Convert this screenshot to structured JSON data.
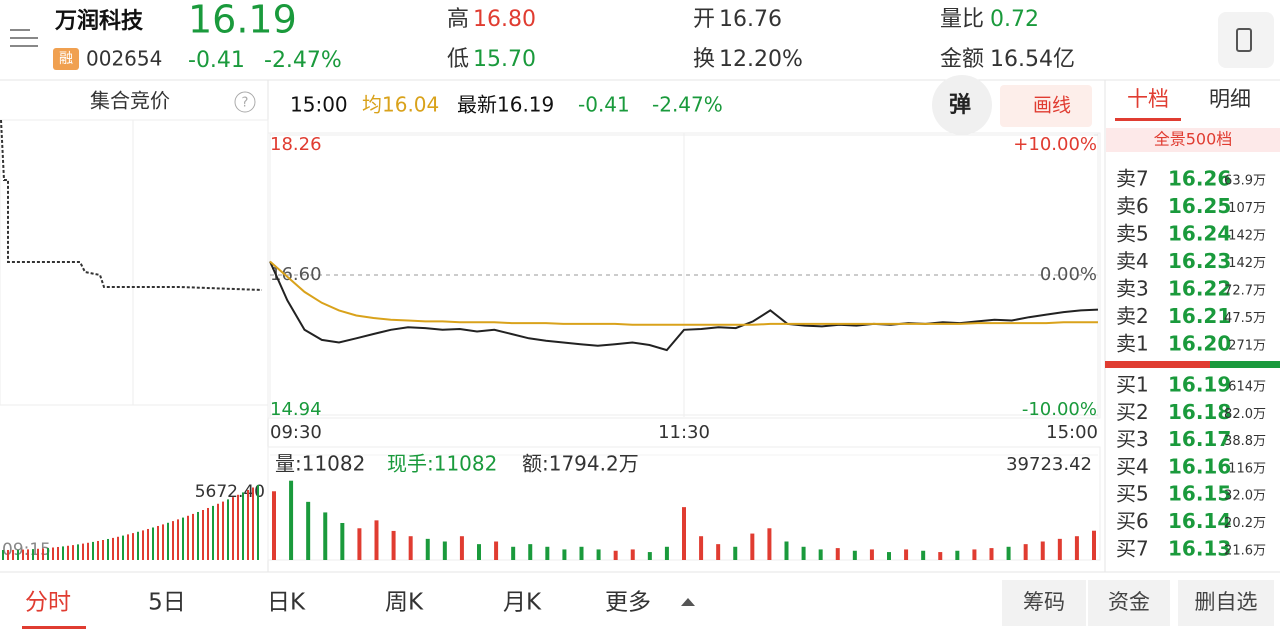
{
  "header": {
    "name": "万润科技",
    "tag": "融",
    "code": "002654",
    "price": "16.19",
    "change": "-0.41",
    "change_pct": "-2.47%",
    "stats": [
      {
        "label": "高",
        "value": "16.80"
      },
      {
        "label": "低",
        "value": "15.70"
      },
      {
        "label": "开",
        "value": "16.76"
      },
      {
        "label": "换",
        "value": "12.20%"
      },
      {
        "label": "量比",
        "value": "0.72"
      },
      {
        "label": "金额",
        "value": "16.54亿"
      }
    ]
  },
  "auction": {
    "title": "集合竞价",
    "help": "?",
    "value_label": "5672.40",
    "time": "09:15"
  },
  "info_bar": {
    "time": "15:00",
    "avg": "均16.04",
    "latest": "最新16.19",
    "change": "-0.41",
    "change_pct": "-2.47%",
    "pop_button": "弹",
    "draw_button": "画线"
  },
  "chart_data": [
    {
      "type": "line",
      "xlim": [
        0,
        240
      ],
      "xticks": [
        {
          "value": 0,
          "label": "09:30"
        },
        {
          "value": 120,
          "label": "11:30"
        },
        {
          "value": 240,
          "label": "15:00"
        }
      ],
      "ylim": [
        14.94,
        18.26
      ],
      "yticks": [
        18.26,
        {
          "value": 16.6,
          "label": "16.60"
        },
        14.94
      ],
      "y2lim": [
        -10,
        10
      ],
      "y2ticks": [
        {
          "value": 10,
          "label": "+10.00%"
        },
        {
          "value": 0,
          "label": "0.00%"
        },
        {
          "value": -10,
          "label": "-10.00%"
        }
      ],
      "x": [
        0,
        5,
        10,
        15,
        20,
        25,
        30,
        35,
        40,
        45,
        50,
        55,
        60,
        65,
        70,
        75,
        80,
        85,
        90,
        95,
        100,
        105,
        110,
        115,
        120,
        125,
        130,
        135,
        140,
        145,
        150,
        155,
        160,
        165,
        170,
        175,
        180,
        185,
        190,
        195,
        200,
        205,
        210,
        215,
        220,
        225,
        230,
        235,
        240
      ],
      "series": [
        {
          "color": "#222222",
          "values": [
            16.76,
            16.3,
            15.95,
            15.83,
            15.8,
            15.85,
            15.9,
            15.95,
            15.98,
            15.97,
            15.95,
            15.96,
            15.93,
            15.95,
            15.9,
            15.85,
            15.82,
            15.8,
            15.78,
            15.76,
            15.78,
            15.8,
            15.77,
            15.71,
            15.95,
            15.96,
            15.98,
            15.97,
            16.05,
            16.18,
            16.02,
            16.0,
            15.99,
            16.01,
            16.0,
            16.02,
            16.01,
            16.03,
            16.02,
            16.04,
            16.03,
            16.05,
            16.07,
            16.06,
            16.1,
            16.13,
            16.16,
            16.18,
            16.19
          ]
        },
        {
          "color": "#d9a21b",
          "values": [
            16.76,
            16.58,
            16.4,
            16.27,
            16.18,
            16.12,
            16.09,
            16.07,
            16.06,
            16.05,
            16.05,
            16.04,
            16.04,
            16.04,
            16.03,
            16.03,
            16.03,
            16.02,
            16.02,
            16.02,
            16.02,
            16.01,
            16.01,
            16.01,
            16.01,
            16.01,
            16.01,
            16.01,
            16.01,
            16.02,
            16.02,
            16.02,
            16.02,
            16.02,
            16.02,
            16.02,
            16.02,
            16.02,
            16.02,
            16.02,
            16.02,
            16.03,
            16.03,
            16.03,
            16.03,
            16.03,
            16.04,
            16.04,
            16.04
          ]
        }
      ]
    },
    {
      "type": "bar",
      "xlim": [
        0,
        240
      ],
      "ylim": [
        0,
        39723.42
      ],
      "yticks": [
        39723.42
      ],
      "labels": [
        "量:11082",
        "现手:11082",
        "额:1794.2万"
      ],
      "x": [
        0,
        5,
        10,
        15,
        20,
        25,
        30,
        35,
        40,
        45,
        50,
        55,
        60,
        65,
        70,
        75,
        80,
        85,
        90,
        95,
        100,
        105,
        110,
        115,
        120,
        125,
        130,
        135,
        140,
        145,
        150,
        155,
        160,
        165,
        170,
        175,
        180,
        185,
        190,
        195,
        200,
        205,
        210,
        215,
        220,
        225,
        230,
        235,
        240
      ],
      "values": [
        26000,
        30000,
        22000,
        18000,
        14000,
        12000,
        15000,
        11000,
        9000,
        8000,
        7000,
        9000,
        6000,
        7000,
        5000,
        6000,
        5000,
        4000,
        5000,
        4000,
        3500,
        4000,
        3000,
        5000,
        20000,
        9000,
        6000,
        5000,
        10000,
        12000,
        7000,
        5000,
        4000,
        4500,
        3500,
        4000,
        3000,
        4000,
        3500,
        3000,
        3500,
        4000,
        4500,
        5000,
        6000,
        7000,
        8000,
        9000,
        11082
      ]
    }
  ],
  "order_book": {
    "tabs": [
      "十档",
      "明细"
    ],
    "depth": "全景500档",
    "asks": [
      {
        "label": "卖7",
        "price": "16.26",
        "volume": "63.9万"
      },
      {
        "label": "卖6",
        "price": "16.25",
        "volume": "107万"
      },
      {
        "label": "卖5",
        "price": "16.24",
        "volume": "142万"
      },
      {
        "label": "卖4",
        "price": "16.23",
        "volume": "142万"
      },
      {
        "label": "卖3",
        "price": "16.22",
        "volume": "72.7万"
      },
      {
        "label": "卖2",
        "price": "16.21",
        "volume": "47.5万"
      },
      {
        "label": "卖1",
        "price": "16.20",
        "volume": "271万"
      }
    ],
    "bids": [
      {
        "label": "买1",
        "price": "16.19",
        "volume": "614万"
      },
      {
        "label": "买2",
        "price": "16.18",
        "volume": "82.0万"
      },
      {
        "label": "买3",
        "price": "16.17",
        "volume": "38.8万"
      },
      {
        "label": "买4",
        "price": "16.16",
        "volume": "116万"
      },
      {
        "label": "买5",
        "price": "16.15",
        "volume": "32.0万"
      },
      {
        "label": "买6",
        "price": "16.14",
        "volume": "20.2万"
      },
      {
        "label": "买7",
        "price": "16.13",
        "volume": "21.6万"
      }
    ]
  },
  "bottom_tabs": [
    "分时",
    "5日",
    "日K",
    "周K",
    "月K",
    "更多"
  ],
  "bottom_buttons": [
    "筹码",
    "资金",
    "删自选"
  ]
}
